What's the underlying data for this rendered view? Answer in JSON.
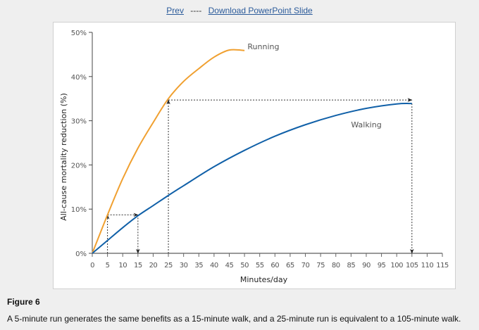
{
  "nav": {
    "prev": "Prev",
    "separator": "----",
    "download": "Download PowerPoint Slide"
  },
  "figure": {
    "title": "Figure 6",
    "caption": "A 5-minute run generates the same benefits as a 15-minute walk, and a 25-minute run is equivalent to a 105-minute walk."
  },
  "chart_data": {
    "type": "line",
    "title": "",
    "xlabel": "Minutes/day",
    "ylabel": "All-cause mortality reduction (%)",
    "xlim": [
      0,
      115
    ],
    "ylim": [
      0,
      50
    ],
    "xticks": [
      0,
      5,
      10,
      15,
      20,
      25,
      30,
      35,
      40,
      45,
      50,
      55,
      60,
      65,
      70,
      75,
      80,
      85,
      90,
      95,
      100,
      105,
      110,
      115
    ],
    "yticks": [
      {
        "v": 0,
        "label": "0%"
      },
      {
        "v": 10,
        "label": "10%"
      },
      {
        "v": 20,
        "label": "20%"
      },
      {
        "v": 30,
        "label": "30%"
      },
      {
        "v": 40,
        "label": "40%"
      },
      {
        "v": 50,
        "label": "50%"
      }
    ],
    "grid": false,
    "series": [
      {
        "name": "Running",
        "color": "#f0a030",
        "x": [
          0,
          5,
          10,
          15,
          20,
          25,
          30,
          35,
          40,
          45,
          50
        ],
        "y": [
          0,
          8.7,
          16.9,
          23.8,
          29.6,
          35,
          38.9,
          41.8,
          44.4,
          46,
          45.9
        ],
        "label_at": [
          51,
          46.2
        ]
      },
      {
        "name": "Walking",
        "color": "#1060a8",
        "x": [
          0,
          5,
          10,
          15,
          20,
          25,
          30,
          40,
          50,
          60,
          70,
          80,
          90,
          100,
          105
        ],
        "y": [
          0,
          2.9,
          5.8,
          8.5,
          10.8,
          13.1,
          15.3,
          19.6,
          23.3,
          26.5,
          29.1,
          31.2,
          32.8,
          33.8,
          33.9
        ],
        "label_at": [
          85,
          28.5
        ]
      }
    ],
    "annotations": [
      {
        "type": "arrow",
        "from": [
          5,
          0
        ],
        "to": [
          5,
          8.7
        ]
      },
      {
        "type": "arrow",
        "from": [
          5,
          8.7
        ],
        "to": [
          15,
          8.7
        ]
      },
      {
        "type": "arrow",
        "from": [
          15,
          8.7
        ],
        "to": [
          15,
          0
        ]
      },
      {
        "type": "arrow",
        "from": [
          25,
          0
        ],
        "to": [
          25,
          34.7
        ]
      },
      {
        "type": "arrow",
        "from": [
          25,
          34.7
        ],
        "to": [
          105,
          34.7
        ]
      },
      {
        "type": "arrow",
        "from": [
          105,
          33.9
        ],
        "to": [
          105,
          0
        ]
      }
    ]
  }
}
